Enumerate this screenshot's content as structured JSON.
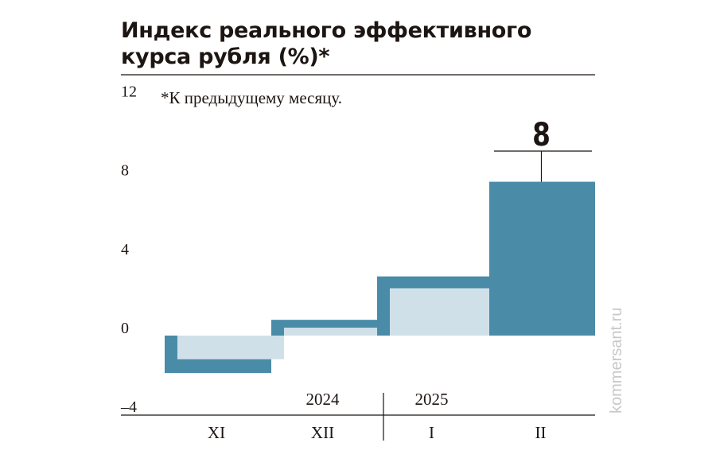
{
  "title_lines": [
    "Индекс реального эффективного",
    "курса рубля (%)*"
  ],
  "footnote": "*К предыдущему месяцу.",
  "watermark": "kommersant.ru",
  "colors": {
    "dark": "#4a8ca8",
    "light": "#d0e0e9",
    "text": "#1c1512"
  },
  "chart_data": {
    "type": "bar",
    "title": "Индекс реального эффективного курса рубля (%)*",
    "footnote": "*К предыдущему месяцу.",
    "categories": [
      "XI",
      "XII",
      "I",
      "II"
    ],
    "year_labels": [
      {
        "label": "2024",
        "category": "XII"
      },
      {
        "label": "2025",
        "category": "I"
      }
    ],
    "series": [
      {
        "values": [
          -1.9,
          0.8,
          3.0,
          7.8
        ]
      },
      {
        "values": [
          -1.2,
          0.4,
          2.4,
          7.8
        ]
      }
    ],
    "data_labels": [
      null,
      null,
      null,
      "8"
    ],
    "yticks": [
      -4,
      0,
      4,
      8,
      12
    ],
    "ylim": [
      -4,
      12
    ],
    "grid": false
  }
}
